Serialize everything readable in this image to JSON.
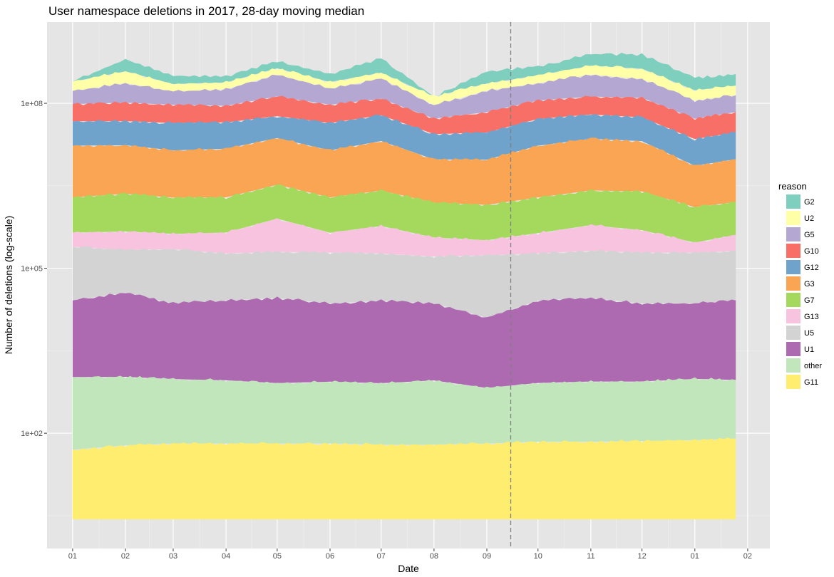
{
  "chart_data": {
    "type": "area",
    "stacked": true,
    "title": "User namespace deletions in 2017, 28-day moving median",
    "xlabel": "Date",
    "ylabel": "Number of deletions (log-scale)",
    "y_scale": "log10",
    "ylim": [
      0.8,
      3000000000
    ],
    "xlim": [
      "2016-12-17",
      "2018-02-14"
    ],
    "x_ticks": [
      "01",
      "02",
      "03",
      "04",
      "05",
      "06",
      "07",
      "08",
      "09",
      "10",
      "11",
      "12",
      "01",
      "02"
    ],
    "y_ticks": [
      "1e+02",
      "1e+05",
      "1e+08"
    ],
    "y_tick_values": [
      100,
      100000,
      100000000
    ],
    "grid": true,
    "legend": {
      "title": "reason",
      "position": "right"
    },
    "reference_line": {
      "x": "2017-09-15",
      "style": "dashed"
    },
    "x_months": [
      "2017-01-01",
      "2017-02-01",
      "2017-03-01",
      "2017-04-01",
      "2017-05-01",
      "2017-06-01",
      "2017-07-01",
      "2017-08-01",
      "2017-09-01",
      "2017-10-01",
      "2017-11-01",
      "2017-12-01",
      "2018-01-01",
      "2018-01-25"
    ],
    "series": [
      {
        "name": "G11",
        "color": "#ffed6f",
        "values": [
          50,
          60,
          65,
          65,
          65,
          65,
          62,
          62,
          65,
          70,
          70,
          72,
          75,
          80
        ]
      },
      {
        "name": "other",
        "color": "#c2e6bc",
        "values": [
          1000,
          1000,
          900,
          850,
          750,
          800,
          750,
          850,
          600,
          750,
          800,
          800,
          900,
          850
        ]
      },
      {
        "name": "U1",
        "color": "#ad6ab1",
        "values": [
          25000,
          35000,
          22000,
          25000,
          28000,
          22000,
          25000,
          22000,
          12000,
          25000,
          28000,
          22000,
          22000,
          25000
        ]
      },
      {
        "name": "U5",
        "color": "#d3d3d3",
        "values": [
          220000,
          180000,
          200000,
          160000,
          170000,
          170000,
          160000,
          140000,
          160000,
          160000,
          180000,
          170000,
          170000,
          180000
        ]
      },
      {
        "name": "G13",
        "color": "#f7c3de",
        "values": [
          200000,
          250000,
          200000,
          260000,
          600000,
          250000,
          400000,
          200000,
          150000,
          250000,
          400000,
          300000,
          100000,
          200000
        ]
      },
      {
        "name": "G7",
        "color": "#a4d95e",
        "values": [
          1500000,
          1800000,
          1500000,
          1500000,
          2500000,
          1500000,
          2000000,
          1200000,
          1100000,
          1500000,
          2000000,
          2000000,
          1000000,
          1200000
        ]
      },
      {
        "name": "G3",
        "color": "#f9a553",
        "values": [
          15000000,
          15000000,
          12000000,
          13000000,
          20000000,
          12000000,
          18000000,
          8000000,
          8000000,
          15000000,
          20000000,
          18000000,
          6000000,
          8000000
        ]
      },
      {
        "name": "G12",
        "color": "#6fa3cb",
        "values": [
          30000000,
          30000000,
          30000000,
          30000000,
          35000000,
          30000000,
          40000000,
          18000000,
          20000000,
          35000000,
          40000000,
          35000000,
          15000000,
          20000000
        ]
      },
      {
        "name": "G10",
        "color": "#f76f67",
        "values": [
          50000000,
          55000000,
          50000000,
          45000000,
          75000000,
          50000000,
          60000000,
          25000000,
          40000000,
          60000000,
          70000000,
          70000000,
          30000000,
          40000000
        ]
      },
      {
        "name": "G5",
        "color": "#b4a8d3",
        "values": [
          70000000,
          130000000,
          70000000,
          90000000,
          200000000,
          90000000,
          160000000,
          40000000,
          100000000,
          120000000,
          200000000,
          150000000,
          60000000,
          70000000
        ]
      },
      {
        "name": "U2",
        "color": "#ffffa8",
        "values": [
          80000000,
          150000000,
          60000000,
          60000000,
          100000000,
          60000000,
          80000000,
          40000000,
          60000000,
          90000000,
          150000000,
          150000000,
          60000000,
          70000000
        ]
      },
      {
        "name": "G2",
        "color": "#7ecfbd",
        "values": [
          0,
          250000000,
          90000000,
          70000000,
          150000000,
          90000000,
          300000000,
          0,
          150000000,
          150000000,
          300000000,
          350000000,
          120000000,
          130000000
        ]
      }
    ]
  }
}
